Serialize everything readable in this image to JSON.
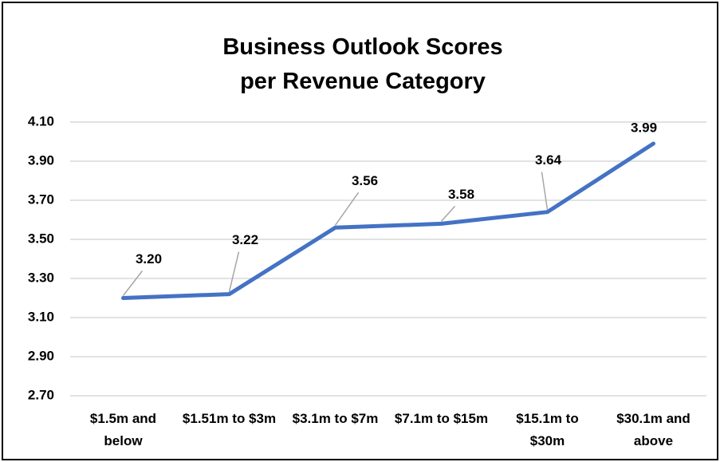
{
  "chart_data": {
    "type": "line",
    "title": "Business Outlook Scores per Revenue Category",
    "categories": [
      "$1.5m and below",
      "$1.51m to $3m",
      "$3.1m to $7m",
      "$7.1m to $15m",
      "$15.1m to $30m",
      "$30.1m and above"
    ],
    "values": [
      3.2,
      3.22,
      3.56,
      3.58,
      3.64,
      3.99
    ],
    "value_labels": [
      "3.20",
      "3.22",
      "3.56",
      "3.58",
      "3.64",
      "3.99"
    ],
    "color": "#4472c4",
    "ylim": [
      2.7,
      4.1
    ],
    "yticks": [
      {
        "value": 2.7,
        "label": "2.70"
      },
      {
        "value": 2.9,
        "label": "2.90"
      },
      {
        "value": 3.1,
        "label": "3.10"
      },
      {
        "value": 3.3,
        "label": "3.30"
      },
      {
        "value": 3.5,
        "label": "3.50"
      },
      {
        "value": 3.7,
        "label": "3.70"
      },
      {
        "value": 3.9,
        "label": "3.90"
      },
      {
        "value": 4.1,
        "label": "4.10"
      }
    ],
    "grid": true
  }
}
